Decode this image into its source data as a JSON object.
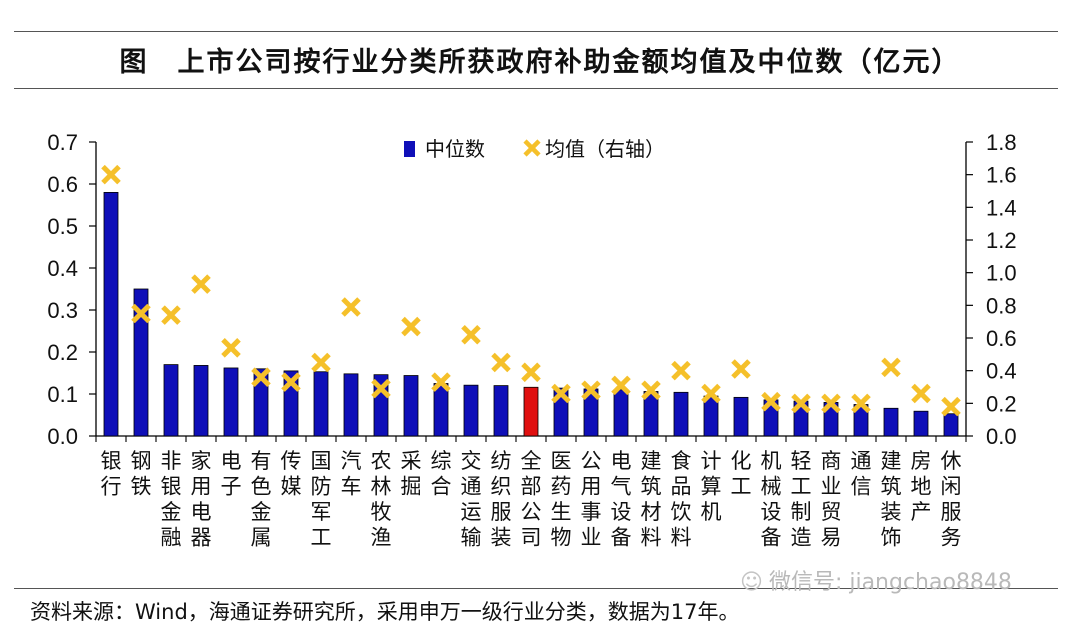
{
  "title": "图　上市公司按行业分类所获政府补助金额均值及中位数（亿元）",
  "source": "资料来源：Wind，海通证券研究所，采用申万一级行业分类，数据为17年。",
  "watermark": "微信号: jiangchao8848",
  "colors": {
    "bar": "#0f0fb8",
    "bar_highlight": "#e01010",
    "mean_marker": "#f5c02a",
    "axis": "#000000"
  },
  "chart_data": {
    "type": "bar",
    "categories": [
      "银行",
      "钢铁",
      "非银金融",
      "家用电器",
      "电子",
      "有色金属",
      "传媒",
      "国防军工",
      "汽车",
      "农林牧渔",
      "采掘",
      "综合",
      "交通运输",
      "纺织服装",
      "全部公司",
      "医药生物",
      "公用事业",
      "电气设备",
      "建筑材料",
      "食品饮料",
      "计算机",
      "化工",
      "机械设备",
      "轻工制造",
      "商业贸易",
      "通信",
      "建筑装饰",
      "房地产",
      "休闲服务"
    ],
    "highlight_category": "全部公司",
    "series": [
      {
        "name": "中位数",
        "axis": "left",
        "type": "bar",
        "values": [
          0.58,
          0.35,
          0.17,
          0.168,
          0.162,
          0.16,
          0.155,
          0.153,
          0.148,
          0.146,
          0.144,
          0.125,
          0.121,
          0.12,
          0.116,
          0.114,
          0.112,
          0.11,
          0.106,
          0.104,
          0.095,
          0.092,
          0.086,
          0.083,
          0.08,
          0.075,
          0.066,
          0.059,
          0.053
        ]
      },
      {
        "name": "均值（右轴）",
        "axis": "right",
        "type": "scatter",
        "marker": "x",
        "values": [
          1.6,
          0.75,
          0.74,
          0.93,
          0.54,
          0.36,
          0.33,
          0.45,
          0.79,
          0.29,
          0.67,
          0.33,
          0.62,
          0.45,
          0.39,
          0.26,
          0.28,
          0.31,
          0.28,
          0.4,
          0.26,
          0.41,
          0.21,
          0.2,
          0.2,
          0.2,
          0.42,
          0.26,
          0.18
        ]
      }
    ],
    "y_left": {
      "lim": [
        0,
        0.7
      ],
      "ticks": [
        "0.0",
        "0.1",
        "0.2",
        "0.3",
        "0.4",
        "0.5",
        "0.6",
        "0.7"
      ]
    },
    "y_right": {
      "lim": [
        0,
        1.8
      ],
      "ticks": [
        "0.0",
        "0.2",
        "0.4",
        "0.6",
        "0.8",
        "1.0",
        "1.2",
        "1.4",
        "1.6",
        "1.8"
      ]
    },
    "xlabel": "",
    "ylabel": "",
    "grid": false,
    "legend": "top-center"
  }
}
